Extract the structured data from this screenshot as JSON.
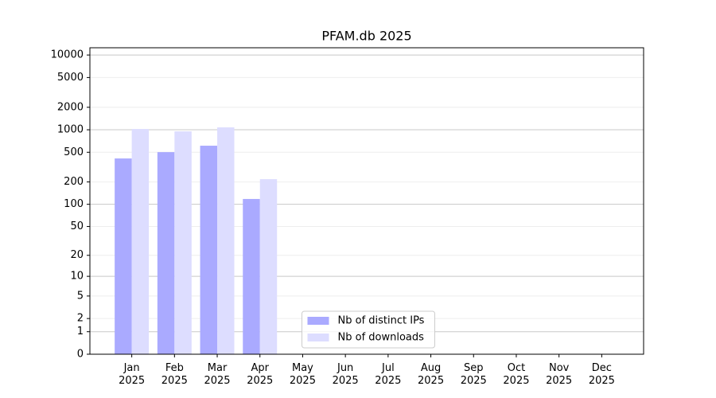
{
  "chart_data": {
    "type": "bar",
    "title": "PFAM.db 2025",
    "categories": [
      "Jan 2025",
      "Feb 2025",
      "Mar 2025",
      "Apr 2025",
      "May 2025",
      "Jun 2025",
      "Jul 2025",
      "Aug 2025",
      "Sep 2025",
      "Oct 2025",
      "Nov 2025",
      "Dec 2025"
    ],
    "series": [
      {
        "name": "Nb of distinct IPs",
        "color": "#aaaaff",
        "values": [
          413,
          502,
          612,
          118,
          null,
          null,
          null,
          null,
          null,
          null,
          null,
          null
        ]
      },
      {
        "name": "Nb of downloads",
        "color": "#ddddff",
        "values": [
          1025,
          952,
          1076,
          218,
          null,
          null,
          null,
          null,
          null,
          null,
          null,
          null
        ]
      }
    ],
    "yscale": "log1p",
    "ylim": [
      0,
      12500
    ],
    "yticks": [
      0,
      1,
      2,
      5,
      10,
      20,
      50,
      100,
      200,
      500,
      1000,
      2000,
      5000,
      10000
    ],
    "grid": true,
    "legend": "lower center"
  }
}
